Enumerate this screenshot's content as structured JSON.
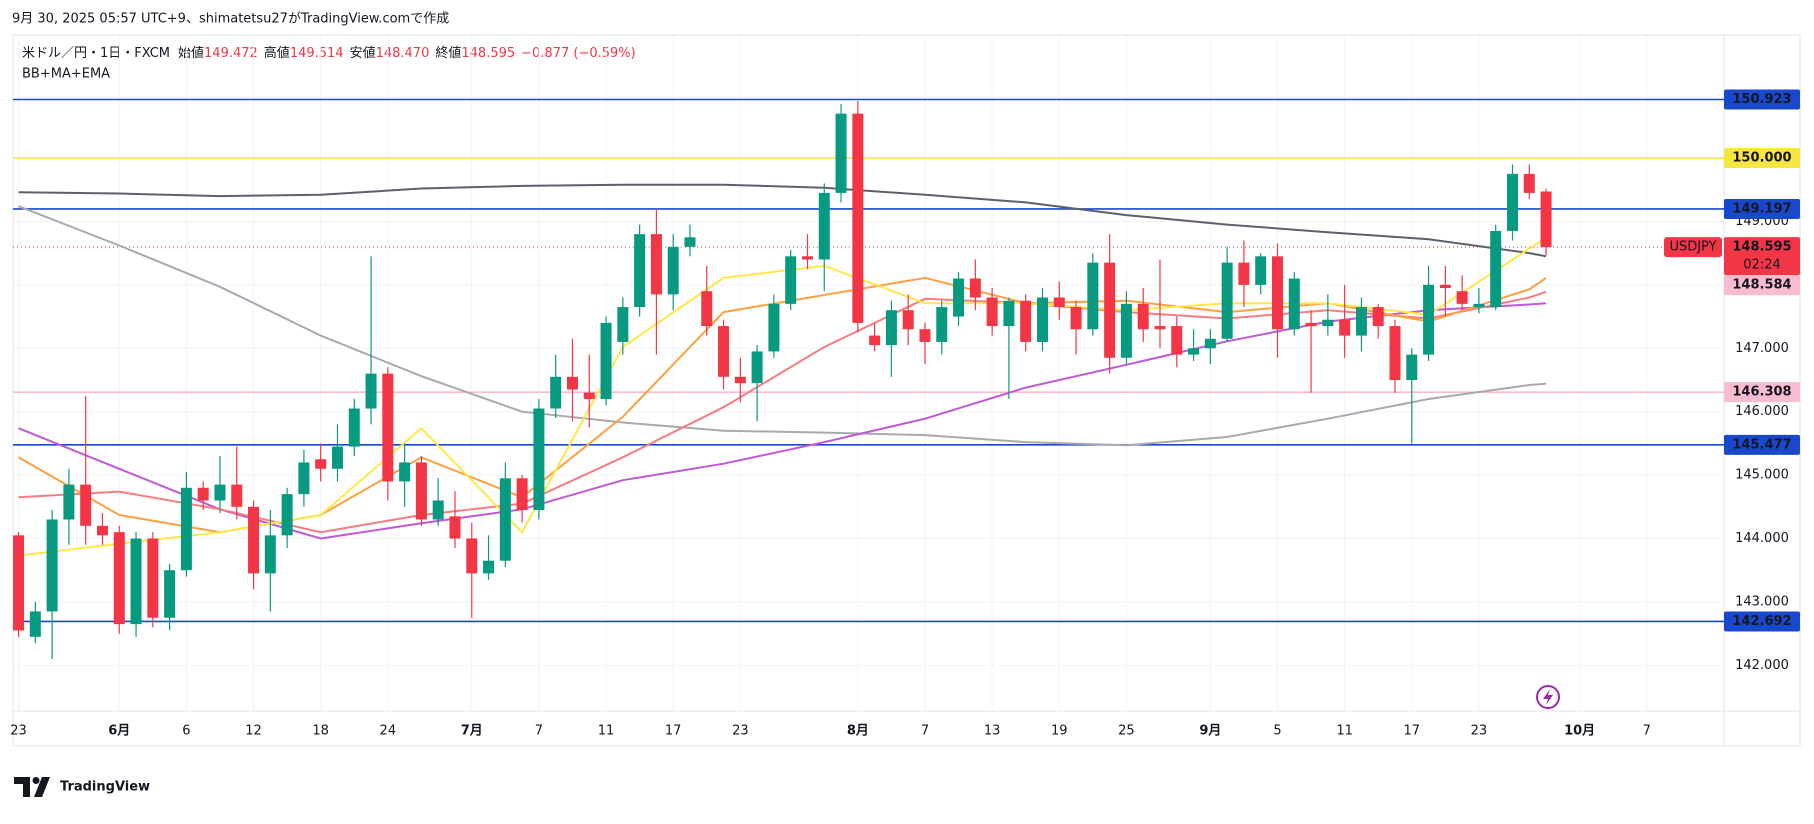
{
  "header": {
    "created": "9月 30, 2025 05:57 UTC+9、shimatetsu27がTradingView.comで作成"
  },
  "footer": {
    "brand": "TradingView"
  },
  "chart_data": {
    "type": "candlestick",
    "symbol": "米ドル／円・1日・FXCM",
    "indicator_label": "BB+MA+EMA",
    "ohlc_names": [
      "始値",
      "高値",
      "安値",
      "終値"
    ],
    "ohlc_labels": [
      "149.472",
      "149.514",
      "148.470",
      "148.595"
    ],
    "change": "−0.877 (−0.59%)",
    "up_color": "#089981",
    "down_color": "#f23645",
    "open": [
      144.05,
      142.45,
      142.85,
      144.3,
      144.85,
      144.2,
      144.1,
      142.65,
      144.0,
      142.75,
      143.5,
      144.8,
      144.6,
      144.85,
      144.5,
      143.45,
      144.05,
      144.7,
      145.25,
      145.1,
      145.45,
      146.05,
      146.6,
      144.9,
      145.2,
      144.3,
      144.35,
      144.0,
      143.45,
      143.65,
      144.95,
      144.45,
      146.05,
      146.55,
      146.3,
      146.2,
      147.1,
      147.65,
      148.8,
      147.85,
      148.6,
      147.9,
      147.35,
      146.55,
      146.45,
      146.95,
      147.7,
      148.45,
      148.4,
      149.45,
      150.7,
      147.2,
      147.05,
      147.6,
      147.3,
      147.1,
      147.5,
      148.1,
      147.8,
      147.35,
      147.75,
      147.1,
      147.8,
      147.65,
      147.3,
      148.35,
      146.85,
      147.7,
      147.35,
      147.35,
      146.9,
      147.0,
      147.15,
      148.35,
      148.0,
      148.45,
      147.3,
      147.4,
      147.35,
      147.45,
      147.2,
      147.65,
      147.35,
      146.5,
      146.9,
      148.0,
      147.9,
      147.65,
      147.65,
      148.85,
      149.75,
      149.472
    ],
    "high": [
      144.1,
      143.0,
      144.45,
      145.1,
      146.25,
      144.4,
      144.2,
      144.1,
      144.1,
      143.6,
      145.05,
      144.9,
      145.3,
      145.45,
      144.6,
      144.45,
      144.8,
      145.4,
      145.5,
      145.8,
      146.2,
      148.45,
      146.7,
      145.5,
      145.3,
      144.95,
      144.75,
      144.25,
      144.05,
      145.2,
      145.0,
      146.2,
      146.9,
      147.15,
      146.9,
      147.5,
      147.8,
      148.95,
      149.2,
      148.8,
      148.95,
      148.3,
      147.45,
      146.85,
      147.05,
      147.85,
      148.55,
      148.8,
      149.6,
      150.85,
      150.9,
      147.4,
      147.75,
      147.85,
      147.4,
      147.75,
      148.2,
      148.4,
      147.95,
      147.8,
      147.85,
      147.95,
      148.05,
      147.75,
      148.5,
      148.8,
      147.9,
      147.95,
      148.4,
      147.5,
      147.3,
      147.3,
      148.6,
      148.7,
      148.5,
      148.65,
      148.2,
      147.6,
      147.85,
      148.0,
      147.8,
      147.7,
      147.45,
      147.0,
      148.3,
      148.3,
      148.15,
      147.95,
      148.95,
      149.9,
      149.9,
      149.514
    ],
    "low": [
      142.45,
      142.35,
      142.1,
      143.9,
      143.9,
      143.9,
      142.5,
      142.45,
      142.6,
      142.55,
      143.4,
      144.45,
      144.4,
      144.3,
      143.2,
      142.85,
      143.85,
      144.5,
      144.9,
      144.9,
      145.3,
      145.8,
      144.6,
      144.5,
      144.2,
      144.2,
      143.85,
      142.75,
      143.35,
      143.55,
      144.25,
      144.3,
      145.9,
      145.85,
      145.75,
      146.1,
      146.9,
      147.5,
      146.9,
      147.6,
      148.45,
      147.2,
      146.35,
      146.15,
      145.85,
      146.85,
      147.6,
      148.25,
      147.9,
      149.3,
      147.25,
      146.95,
      146.55,
      147.05,
      146.75,
      146.9,
      147.35,
      147.6,
      147.2,
      146.2,
      146.95,
      146.95,
      147.45,
      146.9,
      147.2,
      146.6,
      146.75,
      147.1,
      147.0,
      146.7,
      146.8,
      146.75,
      147.1,
      147.65,
      147.85,
      146.85,
      147.2,
      146.3,
      147.2,
      146.85,
      146.95,
      147.15,
      146.3,
      145.5,
      146.8,
      147.5,
      147.6,
      147.55,
      147.6,
      148.7,
      149.35,
      148.47
    ],
    "close": [
      142.55,
      142.85,
      144.3,
      144.85,
      144.2,
      144.05,
      142.65,
      144.0,
      142.75,
      143.5,
      144.8,
      144.6,
      144.85,
      144.5,
      143.45,
      144.05,
      144.7,
      145.2,
      145.1,
      145.45,
      146.05,
      146.6,
      144.9,
      145.2,
      144.3,
      144.6,
      144.0,
      143.45,
      143.65,
      144.95,
      144.45,
      146.05,
      146.55,
      146.35,
      146.2,
      147.4,
      147.65,
      148.8,
      147.85,
      148.6,
      148.75,
      147.35,
      146.55,
      146.45,
      146.95,
      147.7,
      148.45,
      148.4,
      149.45,
      150.7,
      147.4,
      147.05,
      147.6,
      147.3,
      147.1,
      147.65,
      148.1,
      147.8,
      147.35,
      147.75,
      147.1,
      147.8,
      147.65,
      147.3,
      148.35,
      146.85,
      147.7,
      147.3,
      147.3,
      146.9,
      147.0,
      147.15,
      148.35,
      148.0,
      148.45,
      147.3,
      148.1,
      147.35,
      147.45,
      147.2,
      147.65,
      147.35,
      146.5,
      146.9,
      148.0,
      147.95,
      147.7,
      147.7,
      148.85,
      149.75,
      149.45,
      148.595
    ],
    "xlim": [
      -0.33,
      101.6
    ],
    "ylim": [
      141.28,
      151.94
    ],
    "xticks": [
      {
        "value": 0,
        "label": "23"
      },
      {
        "value": 6,
        "label": "6月"
      },
      {
        "value": 10,
        "label": "6"
      },
      {
        "value": 14,
        "label": "12"
      },
      {
        "value": 18,
        "label": "18"
      },
      {
        "value": 22,
        "label": "24"
      },
      {
        "value": 27,
        "label": "7月"
      },
      {
        "value": 31,
        "label": "7"
      },
      {
        "value": 35,
        "label": "11"
      },
      {
        "value": 39,
        "label": "17"
      },
      {
        "value": 43,
        "label": "23"
      },
      {
        "value": 50,
        "label": "8月"
      },
      {
        "value": 54,
        "label": "7"
      },
      {
        "value": 58,
        "label": "13"
      },
      {
        "value": 62,
        "label": "19"
      },
      {
        "value": 66,
        "label": "25"
      },
      {
        "value": 71,
        "label": "9月"
      },
      {
        "value": 75,
        "label": "5"
      },
      {
        "value": 79,
        "label": "11"
      },
      {
        "value": 83,
        "label": "17"
      },
      {
        "value": 87,
        "label": "23"
      },
      {
        "value": 93,
        "label": "10月"
      },
      {
        "value": 97,
        "label": "7"
      }
    ],
    "yticks": [
      {
        "value": 142,
        "label": "142.000"
      },
      {
        "value": 143,
        "label": "143.000"
      },
      {
        "value": 144,
        "label": "144.000"
      },
      {
        "value": 145,
        "label": "145.000"
      },
      {
        "value": 146,
        "label": "146.000"
      },
      {
        "value": 147,
        "label": "147.000"
      },
      {
        "value": 148,
        "label": "148.000"
      },
      {
        "value": 149,
        "label": "149.000"
      }
    ],
    "grid": true,
    "indicators": [
      {
        "color": "#5d606b",
        "x": [
          0,
          6,
          12,
          18,
          24,
          30,
          36,
          42,
          48,
          54,
          60,
          66,
          72,
          78,
          84,
          90,
          91
        ],
        "values": [
          149.46,
          149.44,
          149.4,
          149.42,
          149.52,
          149.56,
          149.58,
          149.58,
          149.53,
          149.42,
          149.3,
          149.1,
          148.95,
          148.83,
          148.72,
          148.5,
          148.45
        ]
      },
      {
        "color": "#a8a8b0",
        "x": [
          0,
          6,
          12,
          18,
          24,
          30,
          36,
          42,
          48,
          54,
          60,
          66,
          72,
          78,
          84,
          90,
          91
        ],
        "values": [
          149.24,
          148.62,
          147.97,
          147.2,
          146.56,
          146.0,
          145.83,
          145.7,
          145.67,
          145.63,
          145.52,
          145.47,
          145.6,
          145.89,
          146.2,
          146.42,
          146.44
        ]
      },
      {
        "color": "#c158d4",
        "x": [
          0,
          6,
          12,
          18,
          24,
          30,
          36,
          42,
          48,
          54,
          60,
          66,
          72,
          78,
          84,
          90,
          91
        ],
        "values": [
          145.74,
          145.1,
          144.46,
          144.0,
          144.24,
          144.46,
          144.92,
          145.18,
          145.52,
          145.89,
          146.38,
          146.74,
          147.11,
          147.42,
          147.6,
          147.69,
          147.71
        ]
      },
      {
        "color": "#f77c80",
        "x": [
          0,
          6,
          12,
          18,
          24,
          30,
          36,
          42,
          48,
          54,
          60,
          66,
          72,
          78,
          84,
          90,
          91
        ],
        "values": [
          144.65,
          144.74,
          144.46,
          144.1,
          144.37,
          144.55,
          145.28,
          146.07,
          147.02,
          147.78,
          147.71,
          147.57,
          147.47,
          147.6,
          147.47,
          147.8,
          147.89
        ]
      },
      {
        "color": "#ffa040",
        "x": [
          0,
          6,
          12,
          18,
          24,
          30,
          36,
          42,
          48,
          54,
          60,
          66,
          72,
          78,
          84,
          90,
          91
        ],
        "values": [
          145.28,
          144.37,
          144.1,
          144.37,
          145.28,
          144.65,
          145.92,
          147.57,
          147.84,
          148.11,
          147.71,
          147.75,
          147.57,
          147.71,
          147.42,
          147.93,
          148.11
        ]
      },
      {
        "color": "#ffe74a",
        "x": [
          0,
          6,
          12,
          18,
          24,
          30,
          36,
          42,
          48,
          54,
          60,
          66,
          72,
          78,
          84,
          90,
          91
        ],
        "values": [
          143.73,
          143.92,
          144.1,
          144.37,
          145.74,
          144.1,
          147.02,
          148.11,
          148.3,
          147.71,
          147.71,
          147.6,
          147.71,
          147.71,
          147.53,
          148.57,
          148.75
        ]
      }
    ],
    "levels": [
      {
        "value": 150.923,
        "label": "150.923",
        "color": "#1848cc",
        "text_color": "#ffffff"
      },
      {
        "value": 150,
        "label": "150.000",
        "color": "#f5e642",
        "text_color": "#131722"
      },
      {
        "value": 149.197,
        "label": "149.197",
        "color": "#1848cc",
        "text_color": "#ffffff"
      },
      {
        "value": 148.595,
        "label": "148.595",
        "color": "#f23645",
        "text_color": "#ffffff",
        "dash": true,
        "current": true
      },
      {
        "value": 148.584,
        "label": "148.584",
        "color": "#f8bbd0",
        "text_color": "#131722",
        "line": false
      },
      {
        "value": 146.308,
        "label": "146.308",
        "color": "#f8bbd0",
        "text_color": "#131722"
      },
      {
        "value": 145.477,
        "label": "145.477",
        "color": "#1848cc",
        "text_color": "#ffffff"
      },
      {
        "value": 142.692,
        "label": "142.692",
        "color": "#1848cc",
        "text_color": "#ffffff"
      }
    ],
    "price_tag": {
      "symbol": "USDJPY",
      "countdown": "02:24"
    }
  }
}
